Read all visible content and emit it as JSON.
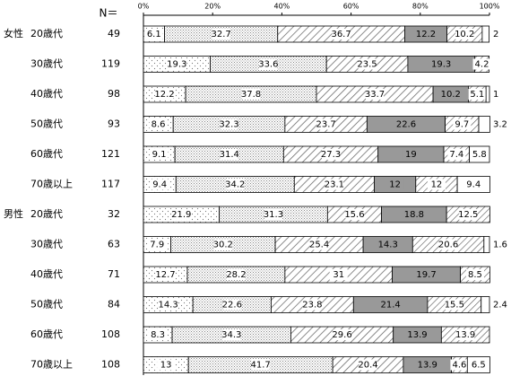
{
  "chart_data": {
    "type": "stacked-bar",
    "n_header": "N＝",
    "groups": [
      "女性",
      null,
      null,
      null,
      null,
      null,
      "男性",
      null,
      null,
      null,
      null,
      null
    ],
    "categories": [
      "20歳代",
      "30歳代",
      "40歳代",
      "50歳代",
      "60歳代",
      "70歳以上",
      "20歳代",
      "30歳代",
      "40歳代",
      "50歳代",
      "60歳代",
      "70歳以上"
    ],
    "n": [
      49,
      119,
      98,
      93,
      121,
      117,
      32,
      63,
      71,
      84,
      108,
      108
    ],
    "xlim": [
      0,
      100
    ],
    "xticks": [
      {
        "value": 0,
        "label": "0%"
      },
      {
        "value": 20,
        "label": "20%"
      },
      {
        "value": 40,
        "label": "40%"
      },
      {
        "value": 60,
        "label": "60%"
      },
      {
        "value": 80,
        "label": "80%"
      },
      {
        "value": 100,
        "label": "100%"
      }
    ],
    "series": [
      {
        "values": [
          6.1,
          19.3,
          12.2,
          8.6,
          9.1,
          9.4,
          21.9,
          7.9,
          12.7,
          14.3,
          8.3,
          13.0
        ]
      },
      {
        "values": [
          32.7,
          33.6,
          37.8,
          32.3,
          31.4,
          34.2,
          31.3,
          30.2,
          28.2,
          22.6,
          34.3,
          41.7
        ]
      },
      {
        "values": [
          36.7,
          23.5,
          33.7,
          23.7,
          27.3,
          23.1,
          15.6,
          25.4,
          31.0,
          23.8,
          29.6,
          20.4
        ]
      },
      {
        "values": [
          12.2,
          19.3,
          10.2,
          22.6,
          19.0,
          12.0,
          18.8,
          14.3,
          19.7,
          21.4,
          13.9,
          13.9
        ]
      },
      {
        "values": [
          10.2,
          4.2,
          5.1,
          9.7,
          7.4,
          12.0,
          12.5,
          20.6,
          8.5,
          15.5,
          13.9,
          4.6
        ]
      },
      {
        "values": [
          2.0,
          null,
          1.0,
          3.2,
          5.8,
          9.4,
          null,
          1.6,
          null,
          2.4,
          null,
          6.5
        ]
      }
    ]
  }
}
